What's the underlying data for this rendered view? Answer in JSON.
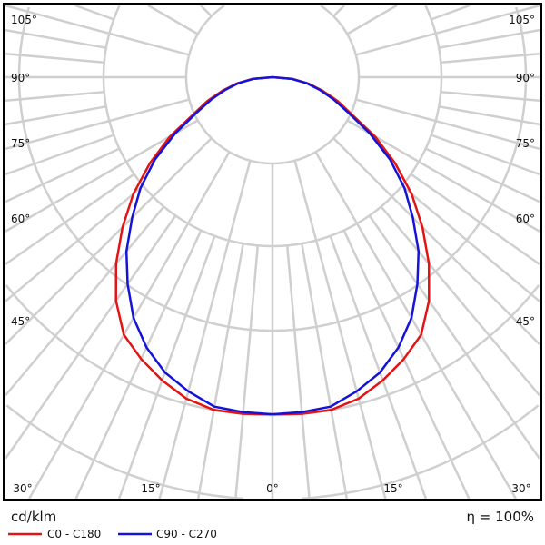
{
  "chart_data": {
    "type": "polar",
    "unit_label": "cd/klm",
    "efficiency_label": "η = 100%",
    "radial_scale": "unlabeled rings (values in ring units)",
    "angle_labels": {
      "left": [
        "105°",
        "90°",
        "75°",
        "60°",
        "45°"
      ],
      "bottom": [
        "30°",
        "15°",
        "0°",
        "15°",
        "30°"
      ],
      "right": [
        "105°",
        "90°",
        "75°",
        "60°",
        "45°"
      ]
    },
    "grid": true,
    "legend_position": "bottom-left",
    "angles": [
      0,
      5,
      10,
      15,
      20,
      25,
      30,
      35,
      40,
      45,
      50,
      55,
      60,
      65,
      70,
      75,
      80,
      85,
      90
    ],
    "series": [
      {
        "name": "C0 - C180",
        "color": "#e41414",
        "values": [
          3.99,
          4.0,
          4.0,
          3.94,
          3.82,
          3.68,
          3.52,
          3.23,
          2.88,
          2.51,
          2.15,
          1.77,
          1.4,
          1.03,
          0.82,
          0.61,
          0.43,
          0.24,
          0
        ]
      },
      {
        "name": "C90 - C270",
        "color": "#1414d8",
        "values": [
          3.99,
          3.98,
          3.96,
          3.85,
          3.72,
          3.53,
          3.29,
          2.99,
          2.69,
          2.35,
          2.04,
          1.7,
          1.33,
          0.99,
          0.77,
          0.58,
          0.41,
          0.23,
          0
        ]
      }
    ]
  }
}
